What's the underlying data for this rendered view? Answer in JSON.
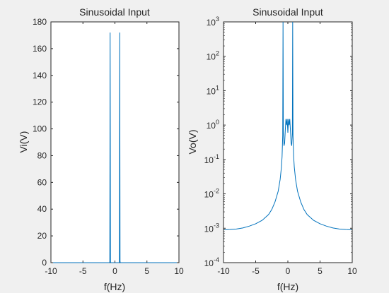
{
  "figure": {
    "background": "#f0f0f0",
    "axes_color": "#262626",
    "line_color": "#0072bd"
  },
  "chart_data": [
    {
      "type": "line",
      "title": "Sinusoidal Input",
      "xlabel": "f(Hz)",
      "ylabel": "Vi(V)",
      "xlim": [
        -10,
        10
      ],
      "ylim": [
        0,
        180
      ],
      "yscale": "linear",
      "xticks": [
        -10,
        -5,
        0,
        5,
        10
      ],
      "xtick_labels": [
        "-10",
        "-5",
        "0",
        "5",
        "10"
      ],
      "yticks": [
        0,
        20,
        40,
        60,
        80,
        100,
        120,
        140,
        160,
        180
      ],
      "ytick_labels": [
        "0",
        "20",
        "40",
        "60",
        "80",
        "100",
        "120",
        "140",
        "160",
        "180"
      ],
      "grid": false,
      "series": [
        {
          "x": [
            -10,
            -0.85,
            -0.8,
            -0.75,
            -0.7,
            -0.65,
            0.65,
            0.7,
            0.75,
            0.8,
            0.85,
            10
          ],
          "y": [
            0,
            0,
            1,
            172,
            1,
            0,
            0,
            1,
            172,
            1,
            0,
            0
          ]
        }
      ]
    },
    {
      "type": "line",
      "title": "Sinusoidal Input",
      "xlabel": "f(Hz)",
      "ylabel": "Vo(V)",
      "xlim": [
        -10,
        10
      ],
      "ylim": [
        0.0001,
        1000
      ],
      "yscale": "log",
      "xticks": [
        -10,
        -5,
        0,
        5,
        10
      ],
      "xtick_labels": [
        "-10",
        "-5",
        "0",
        "5",
        "10"
      ],
      "yticks": [
        0.0001,
        0.001,
        0.01,
        0.1,
        1,
        10,
        100,
        1000
      ],
      "ytick_labels": [
        {
          "base": "10",
          "exp": "-4"
        },
        {
          "base": "10",
          "exp": "-3"
        },
        {
          "base": "10",
          "exp": "-2"
        },
        {
          "base": "10",
          "exp": "-1"
        },
        {
          "base": "10",
          "exp": "0"
        },
        {
          "base": "10",
          "exp": "1"
        },
        {
          "base": "10",
          "exp": "2"
        },
        {
          "base": "10",
          "exp": "3"
        }
      ],
      "grid": false,
      "series": [
        {
          "x": [
            -10,
            -9,
            -8,
            -7,
            -6,
            -5,
            -4,
            -3,
            -2.5,
            -2,
            -1.5,
            -1.2,
            -1,
            -0.9,
            -0.8,
            -0.75,
            -0.7,
            -0.6,
            -0.5,
            -0.4,
            -0.3,
            -0.2,
            -0.1,
            0,
            0.1,
            0.2,
            0.3,
            0.4,
            0.5,
            0.6,
            0.7,
            0.75,
            0.8,
            0.9,
            1,
            1.2,
            1.5,
            2,
            2.5,
            3,
            4,
            5,
            6,
            7,
            8,
            9,
            10
          ],
          "y": [
            0.0009,
            0.00092,
            0.00095,
            0.00102,
            0.00115,
            0.00135,
            0.0017,
            0.0025,
            0.0035,
            0.0058,
            0.012,
            0.026,
            0.06,
            0.12,
            0.5,
            1000,
            0.6,
            0.25,
            0.3,
            0.7,
            1.5,
            1.0,
            1.5,
            0.6,
            1.5,
            1.0,
            1.5,
            0.7,
            0.3,
            0.25,
            0.6,
            1000,
            0.5,
            0.12,
            0.06,
            0.026,
            0.012,
            0.0058,
            0.0035,
            0.0025,
            0.0017,
            0.00135,
            0.00115,
            0.00102,
            0.00095,
            0.00092,
            0.0009
          ]
        }
      ]
    }
  ]
}
